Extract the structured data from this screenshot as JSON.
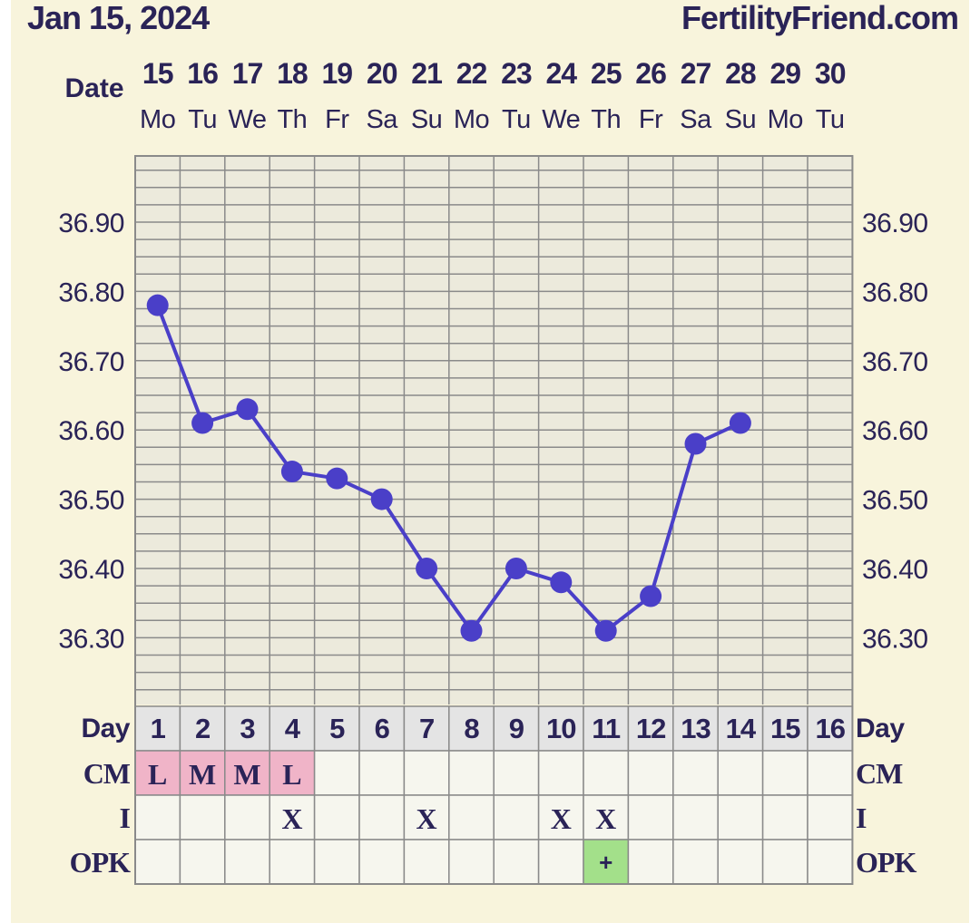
{
  "header": {
    "date": "Jan 15, 2024",
    "site": "FertilityFriend.com"
  },
  "colors": {
    "background": "#f8f4dc",
    "text": "#2a2357",
    "line": "#4a3fc8",
    "grid": "#8a8a8a",
    "cell": "#f6f6ee",
    "day_row": "#e4e4e4",
    "cm_pink": "#f0b4c8",
    "opk_green": "#a3e08a"
  },
  "chart_data": {
    "type": "line",
    "row_labels": {
      "date": "Date",
      "day": "Day",
      "cm": "CM",
      "i": "I",
      "opk": "OPK"
    },
    "dates": [
      "15",
      "16",
      "17",
      "18",
      "19",
      "20",
      "21",
      "22",
      "23",
      "24",
      "25",
      "26",
      "27",
      "28",
      "29",
      "30"
    ],
    "weekdays": [
      "Mo",
      "Tu",
      "We",
      "Th",
      "Fr",
      "Sa",
      "Su",
      "Mo",
      "Tu",
      "We",
      "Th",
      "Fr",
      "Sa",
      "Su",
      "Mo",
      "Tu"
    ],
    "cycle_days": [
      "1",
      "2",
      "3",
      "4",
      "5",
      "6",
      "7",
      "8",
      "9",
      "10",
      "11",
      "12",
      "13",
      "14",
      "15",
      "16"
    ],
    "y_ticks": [
      "36.90",
      "36.80",
      "36.70",
      "36.60",
      "36.50",
      "36.40",
      "36.30"
    ],
    "ylim": [
      36.2,
      36.99
    ],
    "temperatures": [
      36.78,
      36.61,
      36.63,
      36.54,
      36.53,
      36.5,
      36.4,
      36.31,
      36.4,
      36.38,
      36.31,
      36.36,
      36.58,
      36.61,
      null,
      null
    ],
    "cm": [
      "L",
      "M",
      "M",
      "L",
      "",
      "",
      "",
      "",
      "",
      "",
      "",
      "",
      "",
      "",
      "",
      ""
    ],
    "intercourse": [
      "",
      "",
      "",
      "X",
      "",
      "",
      "X",
      "",
      "",
      "X",
      "X",
      "",
      "",
      "",
      "",
      ""
    ],
    "opk": [
      "",
      "",
      "",
      "",
      "",
      "",
      "",
      "",
      "",
      "",
      "+",
      "",
      "",
      "",
      "",
      ""
    ]
  }
}
